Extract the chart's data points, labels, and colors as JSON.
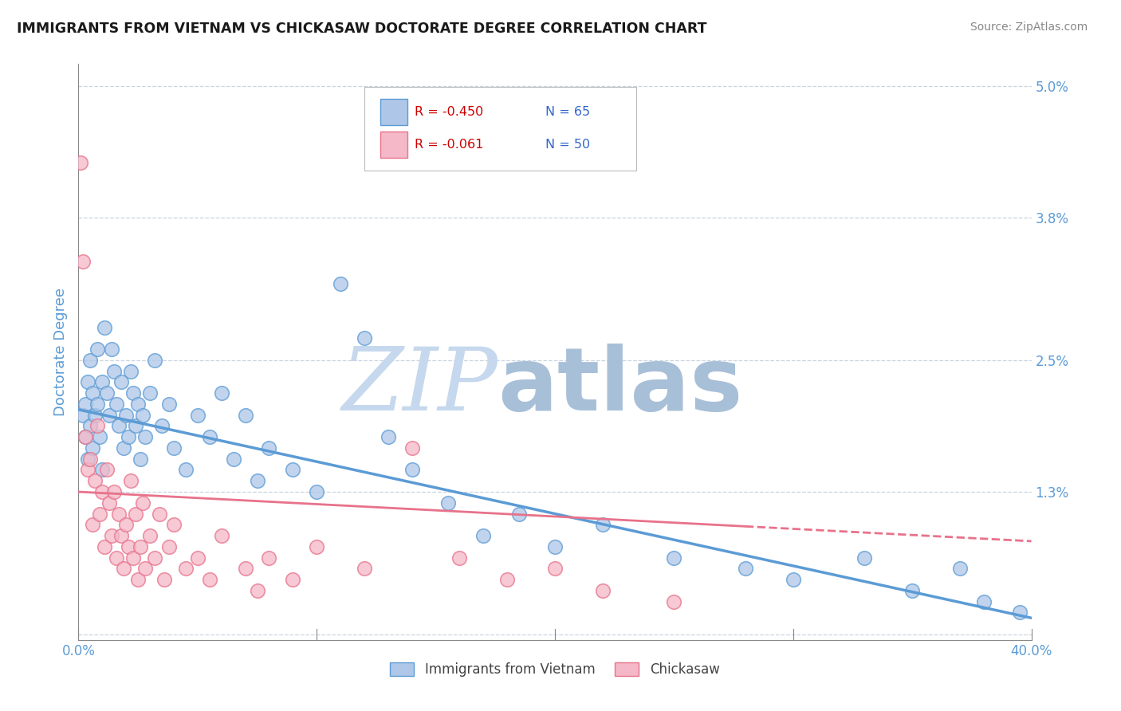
{
  "title": "IMMIGRANTS FROM VIETNAM VS CHICKASAW DOCTORATE DEGREE CORRELATION CHART",
  "source_text": "Source: ZipAtlas.com",
  "ylabel": "Doctorate Degree",
  "xlim": [
    0.0,
    40.0
  ],
  "ylim": [
    -0.05,
    5.2
  ],
  "ytick_values": [
    0.0,
    1.3,
    2.5,
    3.8,
    5.0
  ],
  "ytick_labels": [
    "",
    "1.3%",
    "2.5%",
    "3.8%",
    "5.0%"
  ],
  "legend_footer": [
    "Immigrants from Vietnam",
    "Chickasaw"
  ],
  "blue_color": "#5b9bd5",
  "pink_color": "#e8728a",
  "blue_fill": "#aec6e8",
  "pink_fill": "#f4b8c8",
  "blue_scatter": [
    [
      0.2,
      2.0
    ],
    [
      0.3,
      2.1
    ],
    [
      0.3,
      1.8
    ],
    [
      0.4,
      2.3
    ],
    [
      0.4,
      1.6
    ],
    [
      0.5,
      2.5
    ],
    [
      0.5,
      1.9
    ],
    [
      0.6,
      2.2
    ],
    [
      0.6,
      1.7
    ],
    [
      0.7,
      2.0
    ],
    [
      0.8,
      2.6
    ],
    [
      0.8,
      2.1
    ],
    [
      0.9,
      1.8
    ],
    [
      1.0,
      2.3
    ],
    [
      1.0,
      1.5
    ],
    [
      1.1,
      2.8
    ],
    [
      1.2,
      2.2
    ],
    [
      1.3,
      2.0
    ],
    [
      1.4,
      2.6
    ],
    [
      1.5,
      2.4
    ],
    [
      1.6,
      2.1
    ],
    [
      1.7,
      1.9
    ],
    [
      1.8,
      2.3
    ],
    [
      1.9,
      1.7
    ],
    [
      2.0,
      2.0
    ],
    [
      2.1,
      1.8
    ],
    [
      2.2,
      2.4
    ],
    [
      2.3,
      2.2
    ],
    [
      2.4,
      1.9
    ],
    [
      2.5,
      2.1
    ],
    [
      2.6,
      1.6
    ],
    [
      2.7,
      2.0
    ],
    [
      2.8,
      1.8
    ],
    [
      3.0,
      2.2
    ],
    [
      3.2,
      2.5
    ],
    [
      3.5,
      1.9
    ],
    [
      3.8,
      2.1
    ],
    [
      4.0,
      1.7
    ],
    [
      4.5,
      1.5
    ],
    [
      5.0,
      2.0
    ],
    [
      5.5,
      1.8
    ],
    [
      6.0,
      2.2
    ],
    [
      6.5,
      1.6
    ],
    [
      7.0,
      2.0
    ],
    [
      7.5,
      1.4
    ],
    [
      8.0,
      1.7
    ],
    [
      9.0,
      1.5
    ],
    [
      10.0,
      1.3
    ],
    [
      11.0,
      3.2
    ],
    [
      12.0,
      2.7
    ],
    [
      13.0,
      1.8
    ],
    [
      14.0,
      1.5
    ],
    [
      15.5,
      1.2
    ],
    [
      17.0,
      0.9
    ],
    [
      18.5,
      1.1
    ],
    [
      20.0,
      0.8
    ],
    [
      22.0,
      1.0
    ],
    [
      25.0,
      0.7
    ],
    [
      28.0,
      0.6
    ],
    [
      30.0,
      0.5
    ],
    [
      33.0,
      0.7
    ],
    [
      35.0,
      0.4
    ],
    [
      37.0,
      0.6
    ],
    [
      38.0,
      0.3
    ],
    [
      39.5,
      0.2
    ]
  ],
  "pink_scatter": [
    [
      0.1,
      4.3
    ],
    [
      0.2,
      3.4
    ],
    [
      0.3,
      1.8
    ],
    [
      0.4,
      1.5
    ],
    [
      0.5,
      1.6
    ],
    [
      0.6,
      1.0
    ],
    [
      0.7,
      1.4
    ],
    [
      0.8,
      1.9
    ],
    [
      0.9,
      1.1
    ],
    [
      1.0,
      1.3
    ],
    [
      1.1,
      0.8
    ],
    [
      1.2,
      1.5
    ],
    [
      1.3,
      1.2
    ],
    [
      1.4,
      0.9
    ],
    [
      1.5,
      1.3
    ],
    [
      1.6,
      0.7
    ],
    [
      1.7,
      1.1
    ],
    [
      1.8,
      0.9
    ],
    [
      1.9,
      0.6
    ],
    [
      2.0,
      1.0
    ],
    [
      2.1,
      0.8
    ],
    [
      2.2,
      1.4
    ],
    [
      2.3,
      0.7
    ],
    [
      2.4,
      1.1
    ],
    [
      2.5,
      0.5
    ],
    [
      2.6,
      0.8
    ],
    [
      2.7,
      1.2
    ],
    [
      2.8,
      0.6
    ],
    [
      3.0,
      0.9
    ],
    [
      3.2,
      0.7
    ],
    [
      3.4,
      1.1
    ],
    [
      3.6,
      0.5
    ],
    [
      3.8,
      0.8
    ],
    [
      4.0,
      1.0
    ],
    [
      4.5,
      0.6
    ],
    [
      5.0,
      0.7
    ],
    [
      5.5,
      0.5
    ],
    [
      6.0,
      0.9
    ],
    [
      7.0,
      0.6
    ],
    [
      7.5,
      0.4
    ],
    [
      8.0,
      0.7
    ],
    [
      9.0,
      0.5
    ],
    [
      10.0,
      0.8
    ],
    [
      12.0,
      0.6
    ],
    [
      14.0,
      1.7
    ],
    [
      16.0,
      0.7
    ],
    [
      18.0,
      0.5
    ],
    [
      20.0,
      0.6
    ],
    [
      22.0,
      0.4
    ],
    [
      25.0,
      0.3
    ]
  ],
  "blue_trendline": {
    "x_start": 0.0,
    "y_start": 2.05,
    "x_end": 40.0,
    "y_end": 0.15
  },
  "pink_trendline": {
    "x_start": 0.0,
    "y_start": 1.3,
    "x_end": 40.0,
    "y_end": 0.85
  },
  "watermark_zip": "ZIP",
  "watermark_atlas": "atlas",
  "watermark_color": "#ccdcee",
  "background_color": "#ffffff",
  "grid_color": "#c8d4e0",
  "title_color": "#1a1a1a",
  "axis_label_color": "#5b9bd5",
  "tick_color": "#5b9bd5",
  "legend_r1": "R = -0.450",
  "legend_n1": "N = 65",
  "legend_r2": "R = -0.061",
  "legend_n2": "N = 50"
}
